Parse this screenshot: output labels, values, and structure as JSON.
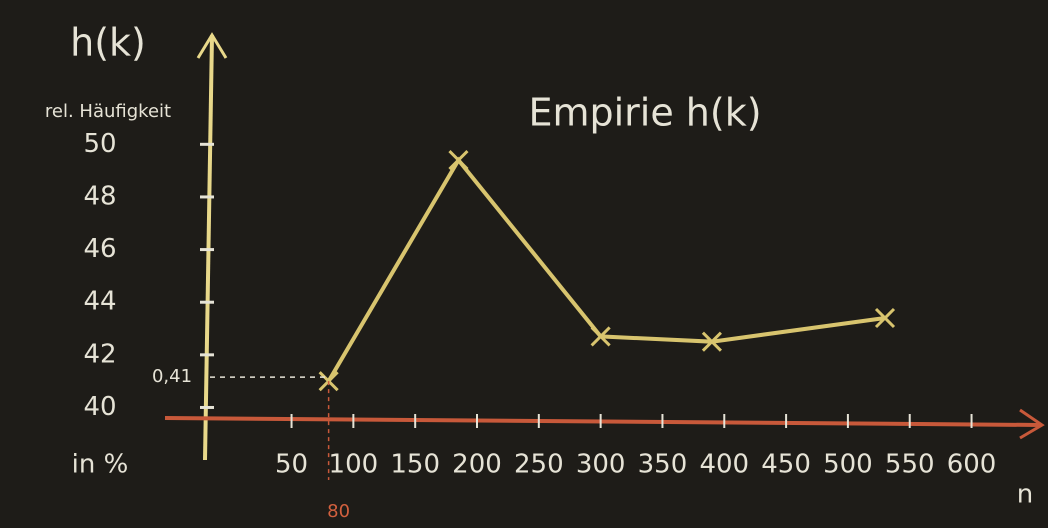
{
  "chart_data": {
    "type": "line",
    "title": "Empirie h(k)",
    "y_label": "h(k)",
    "y_sublabel": "rel. Häufigkeit",
    "y_unit": "in %",
    "x_label": "n",
    "x": [
      80,
      185,
      300,
      390,
      530
    ],
    "values": [
      41,
      49.4,
      42.7,
      42.5,
      43.4
    ],
    "value_labels": [
      "0,41",
      null,
      null,
      null,
      null
    ],
    "color": "#d8c46e",
    "xlim": [
      -20,
      640
    ],
    "ylim": [
      39.6,
      51
    ],
    "xticks": [
      50,
      100,
      150,
      200,
      250,
      300,
      350,
      400,
      450,
      500,
      550,
      600
    ],
    "yticks": [
      40,
      42,
      44,
      46,
      48,
      50
    ]
  }
}
